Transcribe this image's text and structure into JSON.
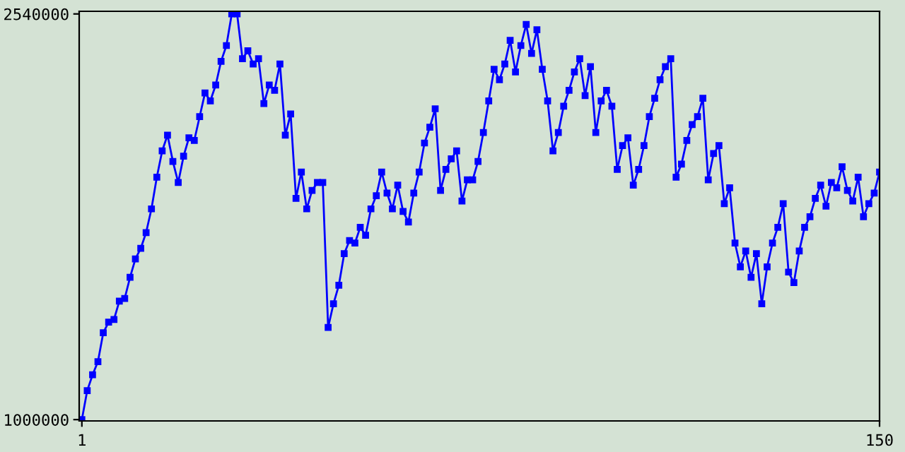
{
  "chart_data": {
    "type": "line",
    "marker": "square",
    "line_style": "solid",
    "grid": false,
    "legend": false,
    "xlim": [
      0.5,
      150
    ],
    "xticks": [
      1,
      150
    ],
    "ylim": [
      995000,
      2550000
    ],
    "yticks": [
      1000000,
      2540000
    ],
    "x": [
      1,
      2,
      3,
      4,
      5,
      6,
      7,
      8,
      9,
      10,
      11,
      12,
      13,
      14,
      15,
      16,
      17,
      18,
      19,
      20,
      21,
      22,
      23,
      24,
      25,
      26,
      27,
      28,
      29,
      30,
      31,
      32,
      33,
      34,
      35,
      36,
      37,
      38,
      39,
      40,
      41,
      42,
      43,
      44,
      45,
      46,
      47,
      48,
      49,
      50,
      51,
      52,
      53,
      54,
      55,
      56,
      57,
      58,
      59,
      60,
      61,
      62,
      63,
      64,
      65,
      66,
      67,
      68,
      69,
      70,
      71,
      72,
      73,
      74,
      75,
      76,
      77,
      78,
      79,
      80,
      81,
      82,
      83,
      84,
      85,
      86,
      87,
      88,
      89,
      90,
      91,
      92,
      93,
      94,
      95,
      96,
      97,
      98,
      99,
      100,
      101,
      102,
      103,
      104,
      105,
      106,
      107,
      108,
      109,
      110,
      111,
      112,
      113,
      114,
      115,
      116,
      117,
      118,
      119,
      120,
      121,
      122,
      123,
      124,
      125,
      126,
      127,
      128,
      129,
      130,
      131,
      132,
      133,
      134,
      135,
      136,
      137,
      138,
      139,
      140,
      141,
      142,
      143,
      144,
      145,
      146,
      147,
      148,
      149,
      150
    ],
    "series": [
      {
        "color": "#0000ff",
        "values": [
          1000000,
          1110000,
          1170000,
          1220000,
          1330000,
          1370000,
          1380000,
          1450000,
          1460000,
          1540000,
          1610000,
          1650000,
          1710000,
          1800000,
          1920000,
          2020000,
          2080000,
          1980000,
          1900000,
          2000000,
          2070000,
          2060000,
          2150000,
          2240000,
          2210000,
          2270000,
          2360000,
          2420000,
          2540000,
          2540000,
          2370000,
          2400000,
          2350000,
          2370000,
          2200000,
          2270000,
          2250000,
          2350000,
          2080000,
          2160000,
          1840000,
          1940000,
          1800000,
          1870000,
          1900000,
          1900000,
          1350000,
          1440000,
          1510000,
          1630000,
          1680000,
          1670000,
          1730000,
          1700000,
          1800000,
          1850000,
          1940000,
          1860000,
          1800000,
          1890000,
          1790000,
          1750000,
          1860000,
          1940000,
          2050000,
          2110000,
          2180000,
          1870000,
          1950000,
          1990000,
          2020000,
          1830000,
          1910000,
          1910000,
          1980000,
          2090000,
          2210000,
          2330000,
          2290000,
          2350000,
          2440000,
          2320000,
          2420000,
          2500000,
          2390000,
          2480000,
          2330000,
          2210000,
          2020000,
          2090000,
          2190000,
          2250000,
          2320000,
          2370000,
          2230000,
          2340000,
          2090000,
          2210000,
          2250000,
          2190000,
          1950000,
          2040000,
          2070000,
          1890000,
          1950000,
          2040000,
          2150000,
          2220000,
          2290000,
          2340000,
          2370000,
          1920000,
          1970000,
          2060000,
          2120000,
          2150000,
          2220000,
          1910000,
          2010000,
          2040000,
          1820000,
          1880000,
          1670000,
          1580000,
          1640000,
          1540000,
          1630000,
          1440000,
          1580000,
          1670000,
          1730000,
          1820000,
          1560000,
          1520000,
          1640000,
          1730000,
          1770000,
          1840000,
          1890000,
          1810000,
          1900000,
          1880000,
          1960000,
          1870000,
          1830000,
          1920000,
          1770000,
          1820000,
          1860000,
          1940000
        ]
      }
    ]
  }
}
